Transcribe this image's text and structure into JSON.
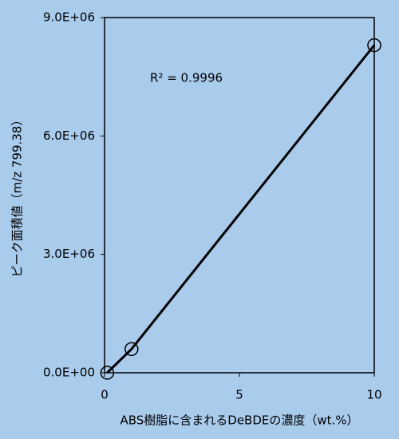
{
  "chart_data": {
    "type": "scatter",
    "x_label": "ABS樹脂に含まれるDeBDEの濃度（wt.%）",
    "y_label": "ピーク面積値（m/z 799.38）",
    "annotation": "R² = 0.9996",
    "x": [
      0.1,
      1,
      10
    ],
    "series": [
      {
        "color": "#000000",
        "values": [
          0,
          600000,
          8300000
        ]
      }
    ],
    "xlim": [
      0,
      10
    ],
    "xticks": [
      0,
      5,
      10
    ],
    "ylim": [
      0,
      9000000
    ],
    "yticks": [
      {
        "value": 0,
        "label": "0.0E+00"
      },
      {
        "value": 3000000,
        "label": "3.0E+06"
      },
      {
        "value": 6000000,
        "label": "6.0E+06"
      },
      {
        "value": 9000000,
        "label": "9.0E+06"
      }
    ]
  }
}
